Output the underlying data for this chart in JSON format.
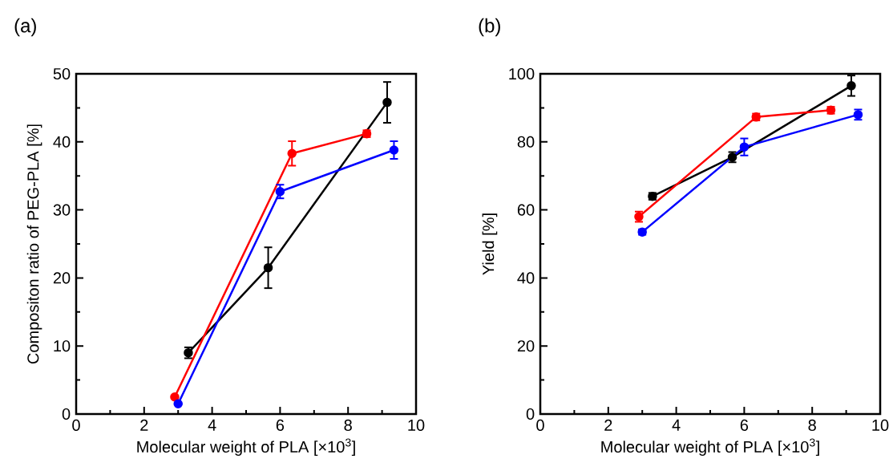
{
  "chart_data": [
    {
      "type": "line",
      "title": "(a)",
      "xlabel": "Molecular weight of PLA [×10$^{3}$]",
      "ylabel": "Compositon ratio of PEG-PLA [%]",
      "xlim": [
        0,
        10
      ],
      "ylim": [
        0,
        50
      ],
      "xticks": [
        0,
        2,
        4,
        6,
        8,
        10
      ],
      "yticks": [
        0,
        10,
        20,
        30,
        40,
        50
      ],
      "marker": "circle",
      "line_style": "solid",
      "grid": false,
      "series": [
        {
          "color": "#000000",
          "x": [
            3.3,
            5.65,
            9.15
          ],
          "values": [
            9,
            21.5,
            45.8
          ],
          "errors": [
            0.8,
            3,
            3
          ]
        },
        {
          "color": "#ff0000",
          "x": [
            2.9,
            6.35,
            8.55
          ],
          "values": [
            2.5,
            38.3,
            41.2
          ],
          "errors": [
            null,
            1.8,
            0.5
          ]
        },
        {
          "color": "#0000ff",
          "x": [
            3.0,
            6.0,
            9.35
          ],
          "values": [
            1.5,
            32.7,
            38.8
          ],
          "errors": [
            null,
            1,
            1.3
          ]
        }
      ]
    },
    {
      "type": "line",
      "title": "(b)",
      "xlabel": "Molecular weight of PLA [×10$^{3}$]",
      "ylabel": "Yield [%]",
      "xlim": [
        0,
        10
      ],
      "ylim": [
        0,
        100
      ],
      "xticks": [
        0,
        2,
        4,
        6,
        8,
        10
      ],
      "yticks": [
        0,
        20,
        40,
        60,
        80,
        100
      ],
      "marker": "circle",
      "line_style": "solid",
      "grid": false,
      "series": [
        {
          "color": "#000000",
          "x": [
            3.3,
            5.65,
            9.15
          ],
          "values": [
            64,
            75.5,
            96.5
          ],
          "errors": [
            1,
            1.5,
            3
          ]
        },
        {
          "color": "#ff0000",
          "x": [
            2.9,
            6.35,
            8.55
          ],
          "values": [
            58,
            87.3,
            89.3
          ],
          "errors": [
            1.5,
            1,
            1
          ]
        },
        {
          "color": "#0000ff",
          "x": [
            3.0,
            6.0,
            9.35
          ],
          "values": [
            53.5,
            78.5,
            88
          ],
          "errors": [
            0.8,
            2.5,
            1.5
          ]
        }
      ]
    }
  ]
}
